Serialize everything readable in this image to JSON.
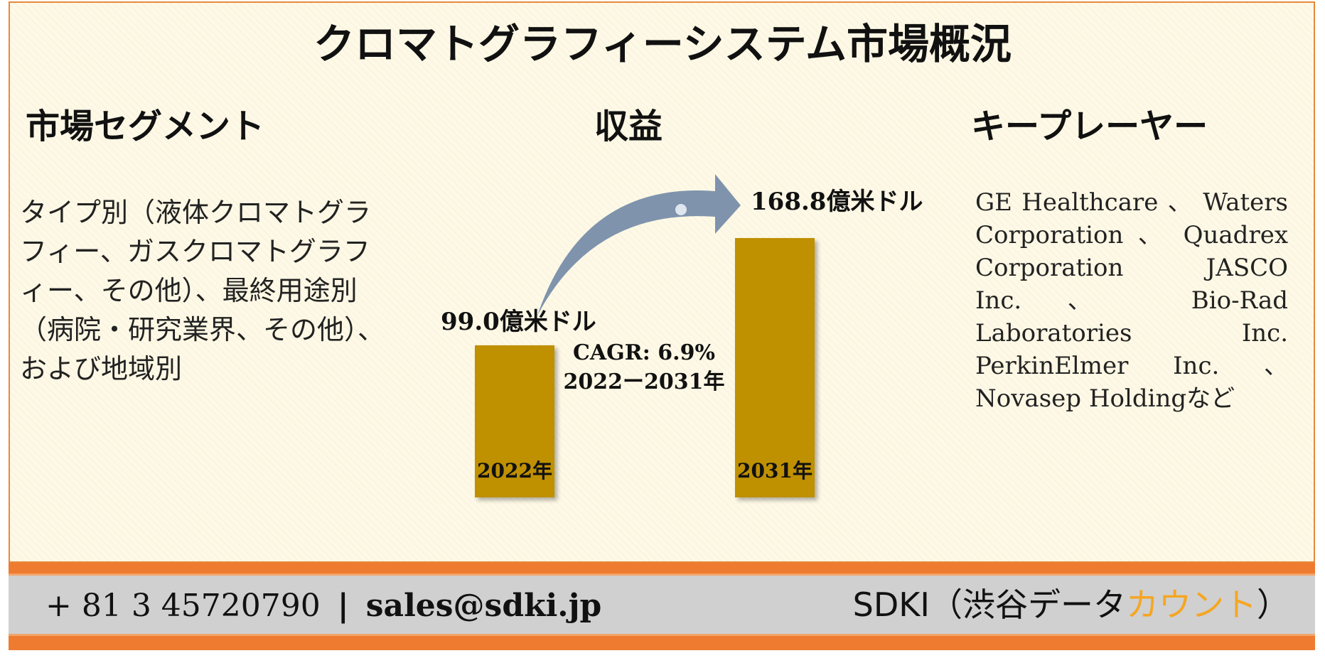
{
  "title": "クロマトグラフィーシステム市場概況",
  "headings": {
    "segments": "市場セグメント",
    "revenue": "収益",
    "players": "キープレーヤー"
  },
  "segments_text": "タイプ別（液体クロマトグラフィー、ガスクロマトグラフィー、その他）、最終用途別（病院・研究業界、その他）、および地域別",
  "players_text": "GE Healthcare 、 Waters Corporation 、 Quadrex Corporation JASCO Inc.、 Bio-Rad Laboratories Inc. PerkinElmer Inc. 、 Novasep Holdingなど",
  "chart_data": {
    "type": "bar",
    "categories": [
      "2022年",
      "2031年"
    ],
    "values": [
      99.0,
      168.8
    ],
    "value_labels": [
      "99.0億米ドル",
      "168.8億米ドル"
    ],
    "annotation": [
      "CAGR: 6.9%",
      "2022ー2031年"
    ],
    "bar_color": "#bf9000",
    "arrow_color": "#7f93ad",
    "title": "",
    "xlabel": "",
    "ylabel": ""
  },
  "footer": {
    "phone": "+ 81 3 45720790",
    "separator": "|",
    "email": "sales@sdki.jp",
    "brand_main": "SDKI（渋谷データ",
    "brand_accent": "カウント",
    "brand_end": "）"
  },
  "colors": {
    "panel_bg": "#fef9e6",
    "border": "#e8893a",
    "footer_band": "#ee7b30",
    "footer_bg": "#d0d0d0",
    "brand_accent": "#f5a623"
  }
}
